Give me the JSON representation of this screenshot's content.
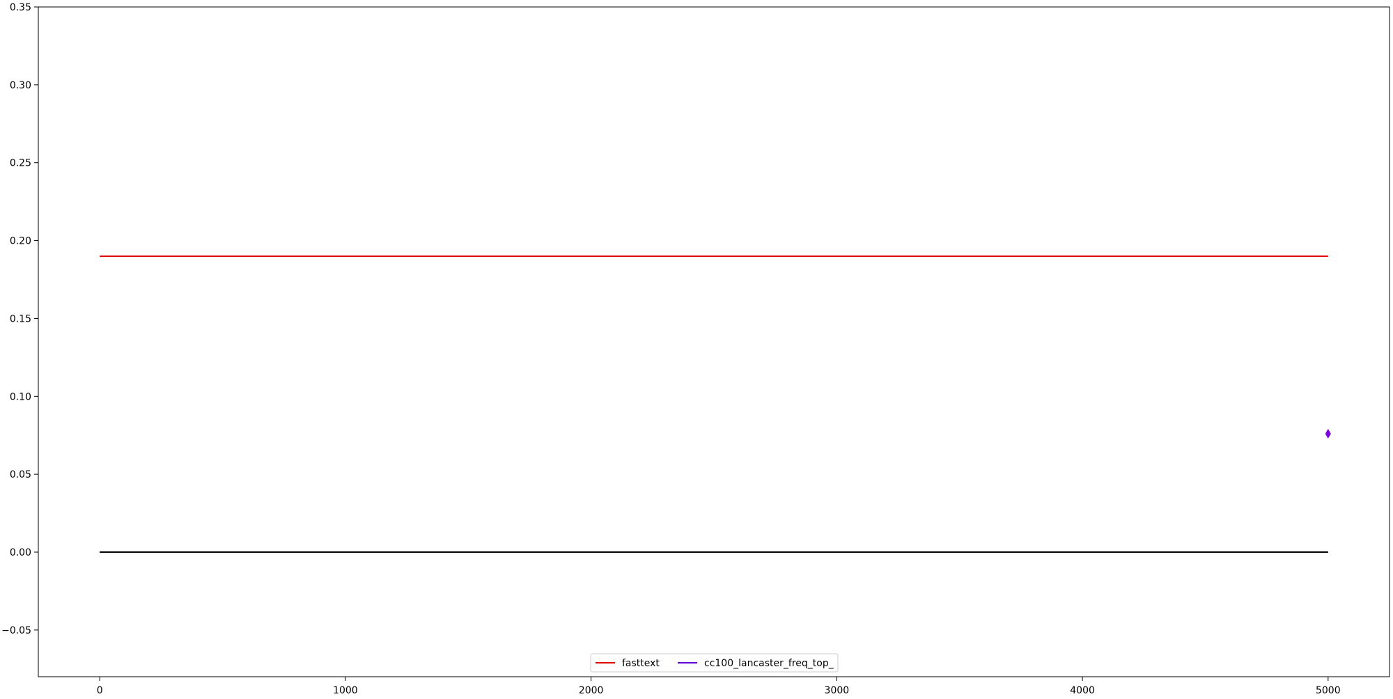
{
  "chart_data": {
    "type": "line",
    "title": "",
    "xlabel": "",
    "ylabel": "",
    "xlim": [
      -250,
      5250
    ],
    "ylim": [
      -0.08,
      0.35
    ],
    "x_ticks": [
      0,
      1000,
      2000,
      3000,
      4000,
      5000
    ],
    "x_tick_labels": [
      "0",
      "1000",
      "2000",
      "3000",
      "4000",
      "5000"
    ],
    "y_ticks": [
      -0.05,
      0.0,
      0.05,
      0.1,
      0.15,
      0.2,
      0.25,
      0.3,
      0.35
    ],
    "y_tick_labels": [
      "−0.05",
      "0.00",
      "0.05",
      "0.10",
      "0.15",
      "0.20",
      "0.25",
      "0.30",
      "0.35"
    ],
    "grid": false,
    "legend": {
      "placement": "bottom-center",
      "columns": 2,
      "entries": [
        {
          "label": "fasttext",
          "color": "#e00000"
        },
        {
          "label": "cc100_lancaster_freq_top_",
          "color": "#5a00d6"
        }
      ]
    },
    "series": [
      {
        "name": "fasttext",
        "kind": "line",
        "color": "#e00000",
        "x": [
          0,
          5000
        ],
        "y": [
          0.19,
          0.19
        ]
      },
      {
        "name": "cc100_lancaster_freq_top_",
        "kind": "marker",
        "marker": "thin-diamond",
        "color": "#7a00e0",
        "x": [
          5000
        ],
        "y": [
          0.076
        ]
      },
      {
        "kind": "line",
        "color": "#000000",
        "x": [
          0,
          5000
        ],
        "y": [
          0.0,
          0.0
        ]
      }
    ]
  }
}
